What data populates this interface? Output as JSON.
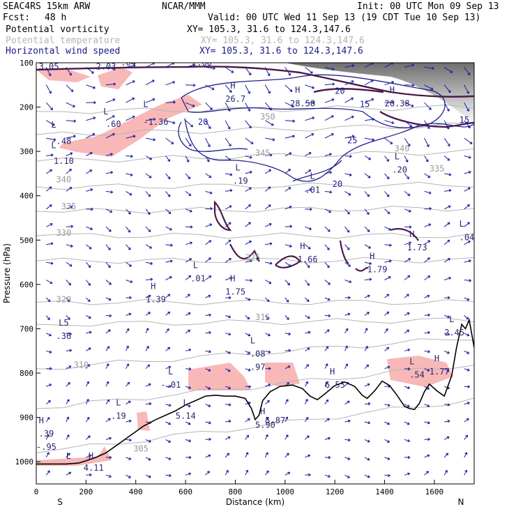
{
  "header": {
    "model": "SEAC4RS 15km ARW",
    "center": "NCAR/MMM",
    "init": "Init: 00 UTC Mon 09 Sep 13",
    "fcst_label": "Fcst:",
    "fcst_value": "48 h",
    "valid": "Valid: 00 UTC Wed 11 Sep 13 (19 CDT Tue 10 Sep 13)"
  },
  "fields": [
    {
      "name": "Potential vorticity",
      "xy": "XY= 105.3, 31.6 to 124.3,147.6",
      "color": "#000000"
    },
    {
      "name": "Potential temperature",
      "xy": "XY= 105.3, 31.6 to 124.3,147.6",
      "color": "#b4b4b4"
    },
    {
      "name": "Horizontal wind speed",
      "xy": "XY= 105.3, 31.6 to 124.3,147.6",
      "color": "#1a1a8c"
    }
  ],
  "chart_data": {
    "type": "cross-section",
    "xlabel": "Distance (km)",
    "ylabel": "Pressure (hPa)",
    "xlim": [
      0,
      1760
    ],
    "ylim": [
      1050,
      100
    ],
    "x_ticks": [
      "0",
      "200",
      "400",
      "600",
      "800",
      "1000",
      "1200",
      "1400",
      "1600"
    ],
    "y_ticks": [
      "100",
      "200",
      "300",
      "400",
      "500",
      "600",
      "700",
      "800",
      "900",
      "1000"
    ],
    "x_end_labels": {
      "left": "S",
      "right": "N"
    },
    "terrain": [
      [
        0,
        1005
      ],
      [
        60,
        1005
      ],
      [
        120,
        1005
      ],
      [
        170,
        1003
      ],
      [
        200,
        998
      ],
      [
        240,
        990
      ],
      [
        280,
        980
      ],
      [
        330,
        960
      ],
      [
        380,
        940
      ],
      [
        430,
        920
      ],
      [
        480,
        905
      ],
      [
        520,
        895
      ],
      [
        560,
        885
      ],
      [
        600,
        872
      ],
      [
        640,
        862
      ],
      [
        680,
        852
      ],
      [
        720,
        850
      ],
      [
        760,
        852
      ],
      [
        800,
        852
      ],
      [
        840,
        857
      ],
      [
        865,
        880
      ],
      [
        880,
        905
      ],
      [
        895,
        895
      ],
      [
        910,
        862
      ],
      [
        940,
        842
      ],
      [
        980,
        830
      ],
      [
        1030,
        827
      ],
      [
        1070,
        835
      ],
      [
        1100,
        852
      ],
      [
        1130,
        860
      ],
      [
        1160,
        847
      ],
      [
        1200,
        828
      ],
      [
        1240,
        820
      ],
      [
        1280,
        830
      ],
      [
        1310,
        850
      ],
      [
        1330,
        857
      ],
      [
        1360,
        840
      ],
      [
        1390,
        818
      ],
      [
        1420,
        828
      ],
      [
        1450,
        850
      ],
      [
        1480,
        875
      ],
      [
        1500,
        880
      ],
      [
        1520,
        882
      ],
      [
        1540,
        868
      ],
      [
        1560,
        842
      ],
      [
        1580,
        825
      ],
      [
        1610,
        840
      ],
      [
        1640,
        852
      ],
      [
        1670,
        805
      ],
      [
        1690,
        740
      ],
      [
        1710,
        690
      ],
      [
        1725,
        700
      ],
      [
        1740,
        680
      ],
      [
        1760,
        742
      ]
    ],
    "theta_contours": [
      {
        "value": "340",
        "x": 80,
        "p": 370
      },
      {
        "value": "335",
        "x": 100,
        "p": 430
      },
      {
        "value": "330",
        "x": 80,
        "p": 490
      },
      {
        "value": "325",
        "x": 840,
        "p": 546
      },
      {
        "value": "320",
        "x": 80,
        "p": 640
      },
      {
        "value": "315",
        "x": 880,
        "p": 680
      },
      {
        "value": "310",
        "x": 150,
        "p": 788
      },
      {
        "value": "305",
        "x": 390,
        "p": 977
      },
      {
        "value": "345",
        "x": 880,
        "p": 310
      },
      {
        "value": "350",
        "x": 900,
        "p": 228
      },
      {
        "value": "340",
        "x": 1440,
        "p": 300
      },
      {
        "value": "335",
        "x": 1580,
        "p": 345
      }
    ],
    "theta_lines": [
      {
        "y0": 380,
        "y1": 375
      },
      {
        "y0": 435,
        "y1": 428
      },
      {
        "y0": 490,
        "y1": 490
      },
      {
        "y0": 547,
        "y1": 545
      },
      {
        "y0": 640,
        "y1": 640
      },
      {
        "y0": 690,
        "y1": 680
      },
      {
        "y0": 790,
        "y1": 720
      },
      {
        "y0": 880,
        "y1": 780
      },
      {
        "y0": 980,
        "y1": 860
      },
      {
        "y0": 322,
        "y1": 300
      },
      {
        "y0": 262,
        "y1": 240
      },
      {
        "y0": 210,
        "y1": 200
      }
    ],
    "wind_contours": [
      {
        "value": "20",
        "x": 650,
        "p": 240
      },
      {
        "value": "20",
        "x": 1200,
        "p": 170
      },
      {
        "value": "25",
        "x": 1250,
        "p": 282
      },
      {
        "value": "20",
        "x": 1190,
        "p": 380
      },
      {
        "value": "15",
        "x": 1300,
        "p": 200
      },
      {
        "value": "15",
        "x": 1700,
        "p": 235
      }
    ],
    "pv_labels": [
      {
        "text": "3.05",
        "x": 10,
        "p": 115
      },
      {
        "text": "2.03",
        "x": 240,
        "p": 115
      },
      {
        "text": ".04",
        "x": 340,
        "p": 106
      },
      {
        "text": "2.60",
        "x": 625,
        "p": 106
      },
      {
        "text": "-1.36",
        "x": 430,
        "p": 240
      },
      {
        "text": "L",
        "x": 430,
        "p": 200
      },
      {
        "text": "L",
        "x": 270,
        "p": 216
      },
      {
        "text": ".60",
        "x": 280,
        "p": 245
      },
      {
        "text": "L",
        "x": 60,
        "p": 246
      },
      {
        "text": "-.48",
        "x": 60,
        "p": 283
      },
      {
        "text": "L",
        "x": 60,
        "p": 293
      },
      {
        "text": "1.10",
        "x": 70,
        "p": 328
      },
      {
        "text": "H",
        "x": 780,
        "p": 158
      },
      {
        "text": "26.7",
        "x": 760,
        "p": 188
      },
      {
        "text": "H",
        "x": 1040,
        "p": 168
      },
      {
        "text": "28.58",
        "x": 1020,
        "p": 198
      },
      {
        "text": "H",
        "x": 1420,
        "p": 168
      },
      {
        "text": "26.38",
        "x": 1400,
        "p": 198
      },
      {
        "text": "L",
        "x": 800,
        "p": 343
      },
      {
        "text": ".19",
        "x": 790,
        "p": 373
      },
      {
        "text": "L",
        "x": 1100,
        "p": 362
      },
      {
        "text": ".01",
        "x": 1080,
        "p": 393
      },
      {
        "text": "L",
        "x": 1440,
        "p": 318
      },
      {
        "text": ".20",
        "x": 1430,
        "p": 348
      },
      {
        "text": "L",
        "x": 1700,
        "p": 470
      },
      {
        "text": ".04",
        "x": 1700,
        "p": 500
      },
      {
        "text": "H",
        "x": 1500,
        "p": 493
      },
      {
        "text": "1.73",
        "x": 1490,
        "p": 523
      },
      {
        "text": "H",
        "x": 1060,
        "p": 520
      },
      {
        "text": "1.66",
        "x": 1050,
        "p": 550
      },
      {
        "text": "H",
        "x": 1340,
        "p": 543
      },
      {
        "text": "1.79",
        "x": 1330,
        "p": 573
      },
      {
        "text": "L",
        "x": 630,
        "p": 563
      },
      {
        "text": ".01",
        "x": 620,
        "p": 593
      },
      {
        "text": "H",
        "x": 780,
        "p": 593
      },
      {
        "text": "1.75",
        "x": 760,
        "p": 623
      },
      {
        "text": "H",
        "x": 460,
        "p": 610
      },
      {
        "text": "1.39",
        "x": 440,
        "p": 640
      },
      {
        "text": "L",
        "x": 1660,
        "p": 685
      },
      {
        "text": "2.45",
        "x": 1640,
        "p": 715
      },
      {
        "text": "L",
        "x": 860,
        "p": 733
      },
      {
        "text": "-.08",
        "x": 840,
        "p": 763
      },
      {
        "text": ".97",
        "x": 860,
        "p": 793
      },
      {
        "text": "H",
        "x": 1180,
        "p": 803
      },
      {
        "text": "6.55",
        "x": 1160,
        "p": 833
      },
      {
        "text": "L",
        "x": 1500,
        "p": 780
      },
      {
        "text": ".54",
        "x": 1500,
        "p": 810
      },
      {
        "text": "H",
        "x": 1600,
        "p": 773
      },
      {
        "text": "1.77",
        "x": 1580,
        "p": 803
      },
      {
        "text": "L",
        "x": 530,
        "p": 803
      },
      {
        "text": "-.01",
        "x": 500,
        "p": 833
      },
      {
        "text": "H",
        "x": 900,
        "p": 893
      },
      {
        "text": "5.90",
        "x": 880,
        "p": 923
      },
      {
        "text": "L",
        "x": 590,
        "p": 873
      },
      {
        "text": "5.14",
        "x": 560,
        "p": 903
      },
      {
        "text": "L",
        "x": 320,
        "p": 873
      },
      {
        "text": ".19",
        "x": 300,
        "p": 903
      },
      {
        "text": "H",
        "x": 10,
        "p": 913
      },
      {
        "text": ".39",
        "x": 10,
        "p": 943
      },
      {
        "text": "-.95",
        "x": 0,
        "p": 973
      },
      {
        "text": "L",
        "x": 120,
        "p": 993
      },
      {
        "text": "H",
        "x": 210,
        "p": 993
      },
      {
        "text": "4.11",
        "x": 190,
        "p": 1020
      },
      {
        "text": "L5",
        "x": 90,
        "p": 693
      },
      {
        "text": ".36",
        "x": 80,
        "p": 723
      },
      {
        "text": "5.87",
        "x": 920,
        "p": 913
      }
    ],
    "thick_pv_segments": 6,
    "grid": false,
    "legend": "none"
  },
  "colors": {
    "pv": "#4a1a4a",
    "pv_thin": "#2b2570",
    "theta": "#b4b4b4",
    "wind": "#1a1a8c",
    "vectors": "#1a1aa0",
    "shading_neg_pv": "#f8b4b4",
    "terrain": "#000000"
  }
}
